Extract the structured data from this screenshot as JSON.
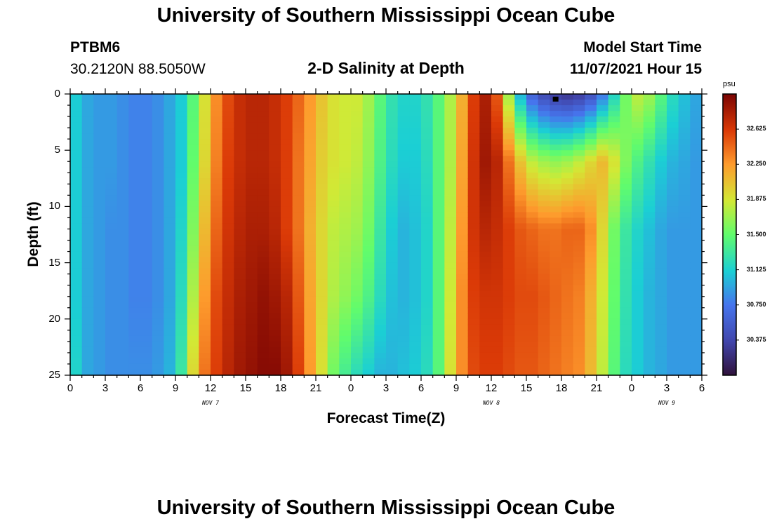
{
  "header": {
    "title": "University of Southern Mississippi Ocean Cube",
    "station_id": "PTBM6",
    "coordinates": "30.2120N  88.5050W",
    "subtitle": "2-D Salinity at Depth",
    "start_label": "Model Start Time",
    "start_value": "11/07/2021 Hour 15"
  },
  "footer": {
    "title": "University of Southern Mississippi Ocean Cube"
  },
  "chart_data": {
    "type": "heatmap",
    "title": "2-D Salinity at Depth",
    "xlabel": "Forecast Time(Z)",
    "ylabel": "Depth (ft)",
    "x_range_hours": [
      0,
      54
    ],
    "y_range_ft": [
      0,
      25
    ],
    "y_inverted": true,
    "x_ticks": [
      {
        "hour": 0,
        "label": "0"
      },
      {
        "hour": 3,
        "label": "3"
      },
      {
        "hour": 6,
        "label": "6"
      },
      {
        "hour": 9,
        "label": "9"
      },
      {
        "hour": 12,
        "label": "12"
      },
      {
        "hour": 15,
        "label": "15"
      },
      {
        "hour": 18,
        "label": "18"
      },
      {
        "hour": 21,
        "label": "21"
      },
      {
        "hour": 24,
        "label": "0"
      },
      {
        "hour": 27,
        "label": "3"
      },
      {
        "hour": 30,
        "label": "6"
      },
      {
        "hour": 33,
        "label": "9"
      },
      {
        "hour": 36,
        "label": "12"
      },
      {
        "hour": 39,
        "label": "15"
      },
      {
        "hour": 42,
        "label": "18"
      },
      {
        "hour": 45,
        "label": "21"
      },
      {
        "hour": 48,
        "label": "0"
      },
      {
        "hour": 51,
        "label": "3"
      },
      {
        "hour": 54,
        "label": "6"
      }
    ],
    "y_ticks": [
      {
        "depth": 0,
        "label": "0"
      },
      {
        "depth": 5,
        "label": "5"
      },
      {
        "depth": 10,
        "label": "10"
      },
      {
        "depth": 15,
        "label": "15"
      },
      {
        "depth": 20,
        "label": "20"
      },
      {
        "depth": 25,
        "label": "25"
      }
    ],
    "date_labels": [
      {
        "hour": 12,
        "label": "NOV 7"
      },
      {
        "hour": 36,
        "label": "NOV 8"
      },
      {
        "hour": 51,
        "label": "NOV 9"
      }
    ],
    "colorbar": {
      "unit": "psu",
      "min": 30.0,
      "max": 33.0,
      "ticks": [
        "32.625",
        "32.250",
        "31.875",
        "31.500",
        "31.125",
        "30.750",
        "30.375"
      ]
    },
    "time_hours": [
      0,
      1,
      2,
      3,
      4,
      5,
      6,
      7,
      8,
      9,
      10,
      11,
      12,
      13,
      14,
      15,
      16,
      17,
      18,
      19,
      20,
      21,
      22,
      23,
      24,
      25,
      26,
      27,
      28,
      29,
      30,
      31,
      32,
      33,
      34,
      35,
      36,
      37,
      38,
      39,
      40,
      41,
      42,
      43,
      44,
      45,
      46,
      47,
      48,
      49,
      50,
      51,
      52,
      53,
      54
    ],
    "depth_ft": [
      0,
      6,
      12,
      18,
      25
    ],
    "salinity_psu": [
      [
        31.35,
        31.1,
        30.95,
        30.9,
        30.9,
        30.85,
        30.8,
        30.8,
        30.85,
        30.95,
        31.1,
        31.45,
        31.9,
        32.3,
        32.55,
        32.7,
        32.75,
        32.75,
        32.7,
        32.6,
        32.45,
        32.25,
        32.05,
        31.9,
        31.85,
        31.85,
        31.7,
        31.45,
        31.25,
        31.15,
        31.15,
        31.25,
        31.45,
        31.75,
        32.15,
        32.6,
        32.8,
        32.5,
        31.7,
        31.0,
        30.6,
        30.4,
        30.3,
        30.25,
        30.3,
        30.45,
        30.75,
        31.15,
        31.55,
        31.8,
        31.7,
        31.45,
        31.2,
        31.05,
        30.95
      ],
      [
        31.4,
        31.1,
        30.95,
        30.9,
        30.9,
        30.85,
        30.8,
        30.8,
        30.85,
        30.95,
        31.1,
        31.5,
        31.95,
        32.35,
        32.6,
        32.7,
        32.75,
        32.75,
        32.7,
        32.6,
        32.4,
        32.2,
        32.0,
        31.9,
        31.85,
        31.8,
        31.65,
        31.4,
        31.2,
        31.1,
        31.1,
        31.2,
        31.45,
        31.75,
        32.2,
        32.65,
        32.85,
        32.75,
        32.4,
        32.05,
        31.8,
        31.7,
        31.65,
        31.7,
        31.8,
        31.95,
        32.1,
        31.9,
        31.6,
        31.4,
        31.25,
        31.1,
        31.0,
        30.95,
        30.9
      ],
      [
        31.4,
        31.1,
        30.95,
        30.9,
        30.85,
        30.85,
        30.8,
        30.8,
        30.85,
        30.95,
        31.15,
        31.6,
        32.1,
        32.45,
        32.65,
        32.75,
        32.8,
        32.8,
        32.75,
        32.6,
        32.4,
        32.15,
        31.95,
        31.8,
        31.75,
        31.7,
        31.55,
        31.3,
        31.1,
        31.0,
        31.05,
        31.15,
        31.45,
        31.8,
        32.25,
        32.65,
        32.75,
        32.7,
        32.6,
        32.5,
        32.45,
        32.4,
        32.4,
        32.45,
        32.45,
        32.3,
        31.95,
        31.55,
        31.3,
        31.15,
        31.05,
        30.95,
        30.9,
        30.9,
        30.9
      ],
      [
        31.45,
        31.1,
        30.95,
        30.9,
        30.85,
        30.85,
        30.8,
        30.8,
        30.85,
        30.95,
        31.2,
        31.75,
        32.25,
        32.55,
        32.7,
        32.8,
        32.85,
        32.9,
        32.85,
        32.75,
        32.5,
        32.2,
        31.95,
        31.75,
        31.65,
        31.55,
        31.4,
        31.2,
        31.05,
        31.0,
        31.05,
        31.15,
        31.45,
        31.85,
        32.3,
        32.6,
        32.65,
        32.65,
        32.6,
        32.55,
        32.55,
        32.5,
        32.45,
        32.4,
        32.35,
        32.15,
        31.85,
        31.5,
        31.25,
        31.1,
        31.0,
        30.95,
        30.9,
        30.9,
        30.9
      ],
      [
        31.45,
        31.15,
        30.95,
        30.9,
        30.85,
        30.85,
        30.85,
        30.85,
        30.9,
        31.0,
        31.3,
        31.95,
        32.4,
        32.6,
        32.75,
        32.85,
        32.9,
        32.95,
        32.95,
        32.85,
        32.6,
        32.25,
        31.9,
        31.55,
        31.35,
        31.2,
        31.1,
        31.0,
        31.0,
        31.05,
        31.1,
        31.2,
        31.45,
        31.9,
        32.3,
        32.55,
        32.6,
        32.6,
        32.55,
        32.5,
        32.5,
        32.45,
        32.4,
        32.35,
        32.3,
        32.1,
        31.8,
        31.45,
        31.2,
        31.1,
        31.0,
        30.95,
        30.9,
        30.9,
        30.9
      ]
    ],
    "marker": {
      "hour": 41.5,
      "depth_ft": 0.3
    }
  }
}
